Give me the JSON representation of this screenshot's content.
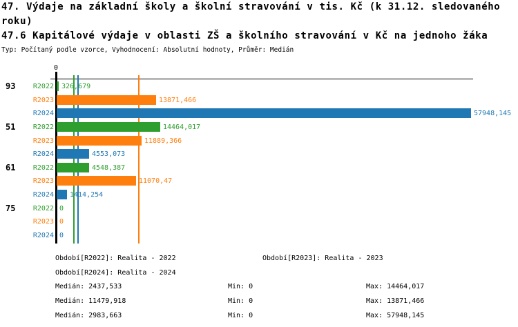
{
  "title": {
    "line1": "47. Výdaje na základní školy a školní stravování v tis. Kč (k 31.12. sledovaného",
    "line2": "roku)",
    "line3": "47.6 Kapitálové výdaje v oblasti ZŠ a školního stravování v Kč na jednoho žáka",
    "subtitle": "Typ: Počítaný podle vzorce, Vyhodnocení: Absolutní hodnoty, Průměr: Medián"
  },
  "chart_data": {
    "type": "bar",
    "orientation": "horizontal",
    "unit": "tis. Kč",
    "x_axis": {
      "tick_label": "0",
      "min": 0
    },
    "x_max": 57948.145,
    "grid": false,
    "groups": [
      "93",
      "51",
      "61",
      "75"
    ],
    "series_labels": [
      "R2022",
      "R2023",
      "R2024"
    ],
    "colors": {
      "R2022": "#2e9e2e",
      "R2023": "#ff7f0e",
      "R2024": "#1f77b4"
    },
    "rows": [
      {
        "group": "93",
        "series": "R2022",
        "value": 326.679,
        "label": "326,679"
      },
      {
        "group": "93",
        "series": "R2023",
        "value": 13871.466,
        "label": "13871,466"
      },
      {
        "group": "93",
        "series": "R2024",
        "value": 57948.145,
        "label": "57948,145"
      },
      {
        "group": "51",
        "series": "R2022",
        "value": 14464.017,
        "label": "14464,017"
      },
      {
        "group": "51",
        "series": "R2023",
        "value": 11889.366,
        "label": "11889,366"
      },
      {
        "group": "51",
        "series": "R2024",
        "value": 4553.073,
        "label": "4553,073"
      },
      {
        "group": "61",
        "series": "R2022",
        "value": 4548.387,
        "label": "4548,387"
      },
      {
        "group": "61",
        "series": "R2023",
        "value": 11070.47,
        "label": "11070,47"
      },
      {
        "group": "61",
        "series": "R2024",
        "value": 1414.254,
        "label": "1414,254"
      },
      {
        "group": "75",
        "series": "R2022",
        "value": 0,
        "label": "0"
      },
      {
        "group": "75",
        "series": "R2023",
        "value": 0,
        "label": "0"
      },
      {
        "group": "75",
        "series": "R2024",
        "value": 0,
        "label": "0"
      }
    ],
    "medians": [
      {
        "series": "R2022",
        "value": 2437.533
      },
      {
        "series": "R2023",
        "value": 11479.918
      },
      {
        "series": "R2024",
        "value": 2983.663
      }
    ]
  },
  "legend": {
    "items": [
      {
        "series": "R2022",
        "label": "Období[R2022]: Realita - 2022"
      },
      {
        "series": "R2023",
        "label": "Období[R2023]: Realita - 2023"
      },
      {
        "series": "R2024",
        "label": "Období[R2024]: Realita - 2024"
      }
    ]
  },
  "stats": [
    {
      "series": "R2022",
      "median": "Medián: 2437,533",
      "min": "Min: 0",
      "max": "Max: 14464,017"
    },
    {
      "series": "R2023",
      "median": "Medián: 11479,918",
      "min": "Min: 0",
      "max": "Max: 13871,466"
    },
    {
      "series": "R2024",
      "median": "Medián: 2983,663",
      "min": "Min: 0",
      "max": "Max: 57948,145"
    }
  ]
}
